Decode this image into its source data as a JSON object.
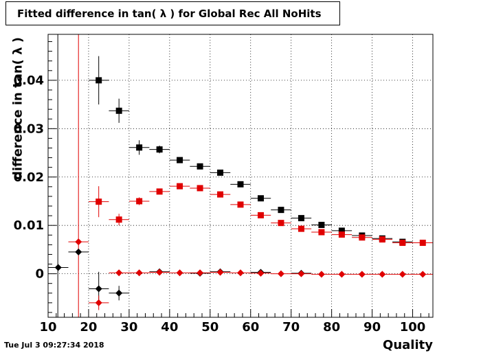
{
  "chart_data": {
    "type": "scatter",
    "title": "Fitted difference in tan( λ ) for Global Rec All NoHits",
    "xlabel": "Quality",
    "ylabel": "difference in tan( λ )",
    "xlim": [
      10,
      105
    ],
    "ylim": [
      -0.009,
      0.0495
    ],
    "x_ticks": [
      10,
      20,
      30,
      40,
      50,
      60,
      70,
      80,
      90,
      100
    ],
    "y_ticks": [
      0,
      0.01,
      0.02,
      0.03,
      0.04
    ],
    "y_tick_labels": [
      "0",
      "0.01",
      "0.02",
      "0.03",
      "0.04"
    ],
    "grid": true,
    "vertical_lines": [
      {
        "x": 12.4,
        "color": "#000000"
      },
      {
        "x": 17.5,
        "color": "#e00000"
      }
    ],
    "series": [
      {
        "marker": "square",
        "color": "#000000",
        "points": [
          {
            "x": 22.5,
            "y": 0.04,
            "err": 0.005
          },
          {
            "x": 27.5,
            "y": 0.0337,
            "err": 0.0025
          },
          {
            "x": 32.5,
            "y": 0.0261,
            "err": 0.0015
          },
          {
            "x": 37.5,
            "y": 0.0257,
            "err": 0.0008
          },
          {
            "x": 42.5,
            "y": 0.0235,
            "err": 0.0005
          },
          {
            "x": 47.5,
            "y": 0.0222,
            "err": 0.0004
          },
          {
            "x": 52.5,
            "y": 0.0209,
            "err": 0.0004
          },
          {
            "x": 57.5,
            "y": 0.0185,
            "err": 0.0003
          },
          {
            "x": 62.5,
            "y": 0.0156,
            "err": 0.0003
          },
          {
            "x": 67.5,
            "y": 0.0132,
            "err": 0.0003
          },
          {
            "x": 72.5,
            "y": 0.0115,
            "err": 0.0003
          },
          {
            "x": 77.5,
            "y": 0.0101,
            "err": 0.0003
          },
          {
            "x": 82.5,
            "y": 0.0089,
            "err": 0.0003
          },
          {
            "x": 87.5,
            "y": 0.0079,
            "err": 0.0003
          },
          {
            "x": 92.5,
            "y": 0.0073,
            "err": 0.0003
          },
          {
            "x": 97.5,
            "y": 0.0066,
            "err": 0.0003
          }
        ]
      },
      {
        "marker": "square",
        "color": "#e00000",
        "points": [
          {
            "x": 22.5,
            "y": 0.0149,
            "err": 0.0032
          },
          {
            "x": 27.5,
            "y": 0.0112,
            "err": 0.0012
          },
          {
            "x": 32.5,
            "y": 0.015,
            "err": 0.0008
          },
          {
            "x": 37.5,
            "y": 0.017,
            "err": 0.0005
          },
          {
            "x": 42.5,
            "y": 0.0181,
            "err": 0.0004
          },
          {
            "x": 47.5,
            "y": 0.0177,
            "err": 0.0004
          },
          {
            "x": 52.5,
            "y": 0.0164,
            "err": 0.0004
          },
          {
            "x": 57.5,
            "y": 0.0143,
            "err": 0.0003
          },
          {
            "x": 62.5,
            "y": 0.0121,
            "err": 0.0003
          },
          {
            "x": 67.5,
            "y": 0.0105,
            "err": 0.0003
          },
          {
            "x": 72.5,
            "y": 0.0093,
            "err": 0.0003
          },
          {
            "x": 77.5,
            "y": 0.0086,
            "err": 0.0003
          },
          {
            "x": 82.5,
            "y": 0.0081,
            "err": 0.0003
          },
          {
            "x": 87.5,
            "y": 0.0075,
            "err": 0.0003
          },
          {
            "x": 92.5,
            "y": 0.0071,
            "err": 0.0003
          },
          {
            "x": 97.5,
            "y": 0.0064,
            "err": 0.0003
          },
          {
            "x": 102.5,
            "y": 0.0064,
            "err": 0.0003
          }
        ]
      },
      {
        "marker": "diamond",
        "color": "#000000",
        "points": [
          {
            "x": 12.5,
            "y": 0.0013,
            "err": 0.0
          },
          {
            "x": 17.5,
            "y": 0.0045,
            "err": 0.0
          },
          {
            "x": 22.5,
            "y": -0.0031,
            "err": 0.0035
          },
          {
            "x": 27.5,
            "y": -0.004,
            "err": 0.0015
          },
          {
            "x": 37.5,
            "y": 0.0004,
            "err": 0.0003
          },
          {
            "x": 47.5,
            "y": 0.0001,
            "err": 0.0003
          },
          {
            "x": 52.5,
            "y": 0.0004,
            "err": 0.0003
          },
          {
            "x": 62.5,
            "y": 0.0003,
            "err": 0.0003
          },
          {
            "x": 72.5,
            "y": 0.0001,
            "err": 0.0003
          }
        ]
      },
      {
        "marker": "diamond",
        "color": "#e00000",
        "points": [
          {
            "x": 17.5,
            "y": 0.0066,
            "err": 0.0
          },
          {
            "x": 22.5,
            "y": -0.006,
            "err": 0.0015
          },
          {
            "x": 27.5,
            "y": 0.0002,
            "err": 0.0002
          },
          {
            "x": 32.5,
            "y": 0.0002,
            "err": 0.0002
          },
          {
            "x": 37.5,
            "y": 0.0003,
            "err": 0.0002
          },
          {
            "x": 42.5,
            "y": 0.0002,
            "err": 0.0002
          },
          {
            "x": 47.5,
            "y": 0.0002,
            "err": 0.0002
          },
          {
            "x": 52.5,
            "y": 0.0003,
            "err": 0.0002
          },
          {
            "x": 57.5,
            "y": 0.0002,
            "err": 0.0002
          },
          {
            "x": 62.5,
            "y": 0.0001,
            "err": 0.0002
          },
          {
            "x": 67.5,
            "y": 0.0,
            "err": 0.0002
          },
          {
            "x": 72.5,
            "y": 0.0,
            "err": 0.0002
          },
          {
            "x": 77.5,
            "y": -0.0001,
            "err": 0.0002
          },
          {
            "x": 82.5,
            "y": -0.0001,
            "err": 0.0002
          },
          {
            "x": 87.5,
            "y": -0.0001,
            "err": 0.0002
          },
          {
            "x": 92.5,
            "y": -0.0001,
            "err": 0.0002
          },
          {
            "x": 97.5,
            "y": -0.0001,
            "err": 0.0002
          },
          {
            "x": 102.5,
            "y": -0.0001,
            "err": 0.0002
          }
        ]
      }
    ]
  },
  "timestamp": "Tue Jul  3 09:27:34 2018"
}
